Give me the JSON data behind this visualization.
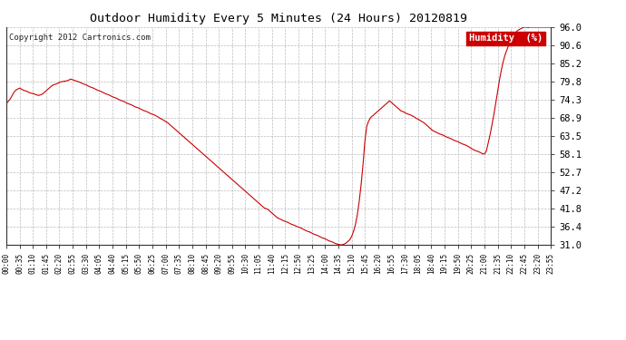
{
  "title": "Outdoor Humidity Every 5 Minutes (24 Hours) 20120819",
  "copyright": "Copyright 2012 Cartronics.com",
  "legend_label": "Humidity  (%)",
  "legend_bg": "#cc0000",
  "legend_fg": "#ffffff",
  "line_color": "#cc0000",
  "background_color": "#ffffff",
  "grid_color": "#bbbbbb",
  "ylim": [
    31.0,
    96.0
  ],
  "yticks": [
    31.0,
    36.4,
    41.8,
    47.2,
    52.7,
    58.1,
    63.5,
    68.9,
    74.3,
    79.8,
    85.2,
    90.6,
    96.0
  ],
  "xtick_labels": [
    "00:00",
    "00:35",
    "01:10",
    "01:45",
    "02:20",
    "02:55",
    "03:30",
    "04:05",
    "04:40",
    "05:15",
    "05:50",
    "06:25",
    "07:00",
    "07:35",
    "08:10",
    "08:45",
    "09:20",
    "09:55",
    "10:30",
    "11:05",
    "11:40",
    "12:15",
    "12:50",
    "13:25",
    "14:00",
    "14:35",
    "15:10",
    "15:45",
    "16:20",
    "16:55",
    "17:30",
    "18:05",
    "18:40",
    "19:15",
    "19:50",
    "20:25",
    "21:00",
    "21:35",
    "22:10",
    "22:45",
    "23:20",
    "23:55"
  ],
  "humidity_values": [
    73.2,
    73.8,
    74.5,
    75.5,
    76.5,
    77.2,
    77.5,
    77.8,
    77.5,
    77.2,
    77.0,
    76.8,
    76.5,
    76.3,
    76.2,
    76.0,
    75.8,
    75.6,
    75.8,
    76.0,
    76.5,
    77.0,
    77.5,
    78.0,
    78.5,
    78.8,
    79.0,
    79.2,
    79.5,
    79.7,
    79.8,
    79.9,
    80.0,
    80.2,
    80.5,
    80.3,
    80.1,
    79.9,
    79.7,
    79.5,
    79.2,
    79.0,
    78.8,
    78.5,
    78.2,
    78.0,
    77.8,
    77.5,
    77.2,
    77.0,
    76.8,
    76.5,
    76.2,
    76.0,
    75.8,
    75.5,
    75.2,
    75.0,
    74.8,
    74.5,
    74.2,
    74.0,
    73.8,
    73.5,
    73.2,
    73.0,
    72.8,
    72.5,
    72.2,
    72.0,
    71.8,
    71.5,
    71.2,
    71.0,
    70.8,
    70.5,
    70.2,
    70.0,
    69.8,
    69.5,
    69.2,
    68.8,
    68.5,
    68.2,
    67.8,
    67.5,
    67.0,
    66.5,
    66.0,
    65.5,
    65.0,
    64.5,
    64.0,
    63.5,
    63.0,
    62.5,
    62.0,
    61.5,
    61.0,
    60.5,
    60.0,
    59.5,
    59.0,
    58.5,
    58.0,
    57.5,
    57.0,
    56.5,
    56.0,
    55.5,
    55.0,
    54.5,
    54.0,
    53.5,
    53.0,
    52.5,
    52.0,
    51.5,
    51.0,
    50.5,
    50.0,
    49.5,
    49.0,
    48.5,
    48.0,
    47.5,
    47.0,
    46.5,
    46.0,
    45.5,
    45.0,
    44.5,
    44.0,
    43.5,
    43.0,
    42.5,
    42.0,
    41.8,
    41.5,
    41.0,
    40.5,
    40.0,
    39.5,
    39.0,
    38.8,
    38.5,
    38.2,
    38.0,
    37.8,
    37.5,
    37.2,
    37.0,
    36.8,
    36.5,
    36.3,
    36.1,
    35.8,
    35.5,
    35.2,
    35.0,
    34.8,
    34.5,
    34.2,
    34.0,
    33.8,
    33.5,
    33.2,
    33.0,
    32.8,
    32.5,
    32.2,
    32.0,
    31.8,
    31.5,
    31.3,
    31.1,
    31.0,
    31.0,
    31.2,
    31.5,
    32.0,
    32.5,
    33.5,
    35.0,
    37.0,
    40.0,
    44.0,
    49.0,
    55.0,
    62.0,
    66.5,
    68.0,
    69.0,
    69.5,
    70.0,
    70.5,
    71.0,
    71.5,
    72.0,
    72.5,
    73.0,
    73.5,
    74.0,
    73.5,
    73.0,
    72.5,
    72.0,
    71.5,
    71.0,
    70.8,
    70.5,
    70.2,
    70.0,
    69.8,
    69.5,
    69.2,
    68.8,
    68.5,
    68.2,
    67.8,
    67.5,
    67.0,
    66.5,
    66.0,
    65.5,
    65.0,
    64.8,
    64.5,
    64.2,
    64.0,
    63.8,
    63.5,
    63.2,
    63.0,
    62.8,
    62.5,
    62.2,
    62.0,
    61.8,
    61.5,
    61.2,
    61.0,
    60.8,
    60.5,
    60.2,
    59.8,
    59.5,
    59.2,
    59.0,
    58.8,
    58.5,
    58.2,
    58.1,
    59.0,
    61.5,
    64.0,
    67.0,
    70.0,
    73.5,
    77.0,
    80.5,
    83.5,
    86.0,
    88.0,
    89.5,
    91.0,
    92.0,
    93.0,
    94.0,
    94.8,
    95.2,
    95.5,
    95.8,
    96.0,
    96.0,
    95.9,
    96.0,
    96.0,
    96.0,
    96.0,
    96.0,
    96.0,
    96.0,
    96.0,
    96.0,
    96.0,
    96.0,
    96.0
  ]
}
